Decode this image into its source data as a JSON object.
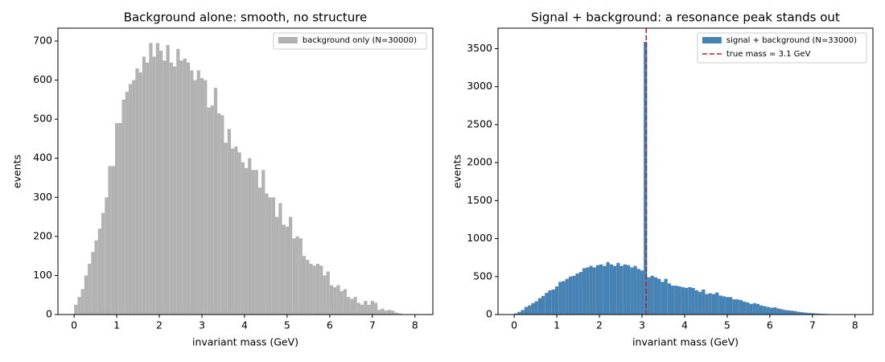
{
  "chart_data": [
    {
      "type": "histogram",
      "title": "Background alone: smooth, no structure",
      "xlabel": "invariant mass (GeV)",
      "ylabel": "events",
      "bins": [
        0,
        0.08,
        0.16,
        0.24,
        0.32,
        0.4,
        0.48,
        0.56,
        0.64,
        0.72,
        0.8,
        0.88,
        0.96,
        1.04,
        1.12,
        1.2,
        1.28,
        1.36,
        1.44,
        1.52,
        1.6,
        1.68,
        1.76,
        1.84,
        1.92,
        2,
        2.08,
        2.16,
        2.24,
        2.32,
        2.4,
        2.48,
        2.56,
        2.64,
        2.72,
        2.8,
        2.88,
        2.96,
        3.04,
        3.12,
        3.2,
        3.28,
        3.36,
        3.44,
        3.52,
        3.6,
        3.68,
        3.76,
        3.84,
        3.92,
        4,
        4.08,
        4.16,
        4.24,
        4.32,
        4.4,
        4.48,
        4.56,
        4.64,
        4.72,
        4.8,
        4.88,
        4.96,
        5.04,
        5.12,
        5.2,
        5.28,
        5.36,
        5.44,
        5.52,
        5.6,
        5.68,
        5.76,
        5.84,
        5.92,
        6,
        6.08,
        6.16,
        6.24,
        6.32,
        6.4,
        6.48,
        6.56,
        6.64,
        6.72,
        6.8,
        6.88,
        6.96,
        7.04,
        7.12,
        7.2,
        7.28,
        7.36,
        7.44,
        7.52,
        7.6,
        7.68,
        7.76,
        7.84,
        7.92,
        8
      ],
      "series": [
        {
          "name": "background only (N=30000)",
          "color": "#b2b2b2",
          "values": [
            25,
            45,
            65,
            100,
            130,
            160,
            190,
            220,
            260,
            300,
            380,
            380,
            490,
            490,
            550,
            570,
            590,
            600,
            630,
            620,
            660,
            645,
            695,
            660,
            695,
            675,
            650,
            690,
            645,
            635,
            680,
            650,
            655,
            645,
            625,
            600,
            625,
            605,
            600,
            530,
            535,
            580,
            515,
            510,
            440,
            475,
            425,
            430,
            415,
            390,
            375,
            400,
            370,
            370,
            325,
            370,
            310,
            300,
            300,
            250,
            285,
            230,
            225,
            250,
            195,
            200,
            195,
            150,
            140,
            130,
            125,
            130,
            125,
            100,
            110,
            75,
            70,
            75,
            60,
            65,
            45,
            40,
            45,
            30,
            25,
            35,
            25,
            35,
            30,
            12,
            15,
            10,
            12,
            10,
            5,
            3,
            0,
            0,
            0,
            0
          ]
        }
      ],
      "xlim": [
        -0.38,
        8.42
      ],
      "ylim": [
        0,
        733
      ],
      "xticks": [
        0,
        1,
        2,
        3,
        4,
        5,
        6,
        7,
        8
      ],
      "yticks": [
        0,
        100,
        200,
        300,
        400,
        500,
        600,
        700
      ],
      "legend": "upper right"
    },
    {
      "type": "histogram",
      "title": "Signal + background: a resonance peak stands out",
      "xlabel": "invariant mass (GeV)",
      "ylabel": "events",
      "bins": [
        0,
        0.08,
        0.16,
        0.24,
        0.32,
        0.4,
        0.48,
        0.56,
        0.64,
        0.72,
        0.8,
        0.88,
        0.96,
        1.04,
        1.12,
        1.2,
        1.28,
        1.36,
        1.44,
        1.52,
        1.6,
        1.68,
        1.76,
        1.84,
        1.92,
        2,
        2.08,
        2.16,
        2.24,
        2.32,
        2.4,
        2.48,
        2.56,
        2.64,
        2.72,
        2.8,
        2.88,
        2.96,
        3.04,
        3.12,
        3.2,
        3.28,
        3.36,
        3.44,
        3.52,
        3.6,
        3.68,
        3.76,
        3.84,
        3.92,
        4,
        4.08,
        4.16,
        4.24,
        4.32,
        4.4,
        4.48,
        4.56,
        4.64,
        4.72,
        4.8,
        4.88,
        4.96,
        5.04,
        5.12,
        5.2,
        5.28,
        5.36,
        5.44,
        5.52,
        5.6,
        5.68,
        5.76,
        5.84,
        5.92,
        6,
        6.08,
        6.16,
        6.24,
        6.32,
        6.4,
        6.48,
        6.56,
        6.64,
        6.72,
        6.8,
        6.88,
        6.96,
        7.04,
        7.12,
        7.2,
        7.28,
        7.36,
        7.44,
        7.52,
        7.6,
        7.68,
        7.76,
        7.84,
        7.92,
        8
      ],
      "series": [
        {
          "name": "signal + background (N=33000)",
          "color": "#4682b4",
          "values": [
            15,
            35,
            60,
            100,
            120,
            150,
            175,
            215,
            245,
            285,
            320,
            330,
            370,
            430,
            440,
            470,
            500,
            510,
            540,
            560,
            610,
            620,
            640,
            620,
            650,
            660,
            640,
            690,
            660,
            640,
            680,
            640,
            660,
            650,
            620,
            640,
            600,
            580,
            3590,
            490,
            510,
            490,
            470,
            430,
            470,
            410,
            380,
            380,
            370,
            360,
            350,
            360,
            350,
            320,
            300,
            330,
            270,
            280,
            270,
            290,
            250,
            240,
            230,
            230,
            200,
            200,
            190,
            170,
            160,
            140,
            150,
            140,
            120,
            110,
            100,
            90,
            95,
            80,
            70,
            60,
            55,
            50,
            45,
            35,
            30,
            25,
            20,
            18,
            15,
            12,
            10,
            8,
            6,
            4,
            3,
            2,
            1,
            0,
            0,
            0
          ]
        }
      ],
      "vlines": [
        {
          "name": "true mass = 3.1 GeV",
          "x": 3.1,
          "color": "#b22222",
          "style": "dashed"
        }
      ],
      "xlim": [
        -0.38,
        8.42
      ],
      "ylim": [
        0,
        3770
      ],
      "xticks": [
        0,
        1,
        2,
        3,
        4,
        5,
        6,
        7,
        8
      ],
      "yticks": [
        0,
        500,
        1000,
        1500,
        2000,
        2500,
        3000,
        3500
      ],
      "legend": "upper right"
    }
  ]
}
